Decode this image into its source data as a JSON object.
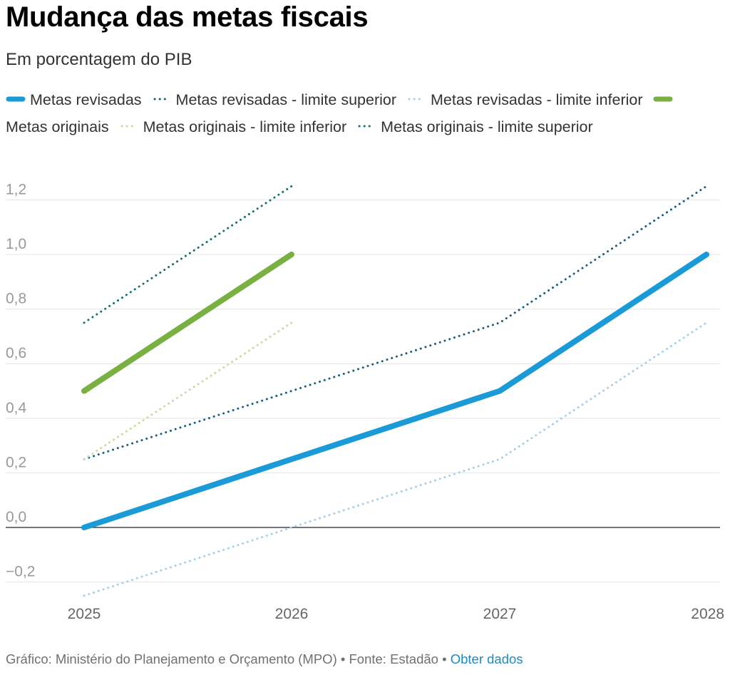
{
  "header": {
    "title": "Mudança das metas fiscais",
    "subtitle": "Em porcentagem do PIB"
  },
  "colors": {
    "revisadas": "#1a9bd8",
    "revisadas_sup": "#1b5f7f",
    "revisadas_inf": "#a6d0e8",
    "originais": "#78b041",
    "originais_inf": "#c5dda3",
    "originais_sup": "#17706c",
    "zero_line": "#222222",
    "grid": "#e4e4e4"
  },
  "chart_data": {
    "type": "line",
    "title": "Mudança das metas fiscais",
    "subtitle": "Em porcentagem do PIB",
    "xlabel": "",
    "ylabel": "",
    "x": [
      "2025",
      "2026",
      "2027",
      "2028"
    ],
    "ylim": [
      -0.25,
      1.25
    ],
    "yticks": [
      -0.2,
      0.0,
      0.2,
      0.4,
      0.6,
      0.8,
      1.0,
      1.2
    ],
    "ytick_labels": [
      "−0,2",
      "0,0",
      "0,2",
      "0,4",
      "0,6",
      "0,8",
      "1,0",
      "1,2"
    ],
    "grid": true,
    "legend_position": "top",
    "series": [
      {
        "name": "Metas revisadas",
        "style": "solid",
        "color_key": "revisadas",
        "values": [
          0.0,
          0.25,
          0.5,
          1.0
        ]
      },
      {
        "name": "Metas revisadas - limite superior",
        "style": "dotted",
        "color_key": "revisadas_sup",
        "values": [
          0.25,
          0.5,
          0.75,
          1.25
        ]
      },
      {
        "name": "Metas revisadas - limite inferior",
        "style": "dotted",
        "color_key": "revisadas_inf",
        "values": [
          -0.25,
          0.0,
          0.25,
          0.75
        ]
      },
      {
        "name": "Metas originais",
        "style": "solid",
        "color_key": "originais",
        "values": [
          0.5,
          1.0,
          null,
          null
        ]
      },
      {
        "name": "Metas originais - limite inferior",
        "style": "dotted",
        "color_key": "originais_inf",
        "values": [
          0.25,
          0.75,
          null,
          null
        ]
      },
      {
        "name": "Metas originais - limite superior",
        "style": "dotted",
        "color_key": "originais_sup",
        "values": [
          0.75,
          1.25,
          null,
          null
        ]
      }
    ]
  },
  "footer": {
    "credit": "Gráfico: Ministério do Planejamento e Orçamento (MPO) • Fonte: Estadão • ",
    "link_label": "Obter dados"
  }
}
